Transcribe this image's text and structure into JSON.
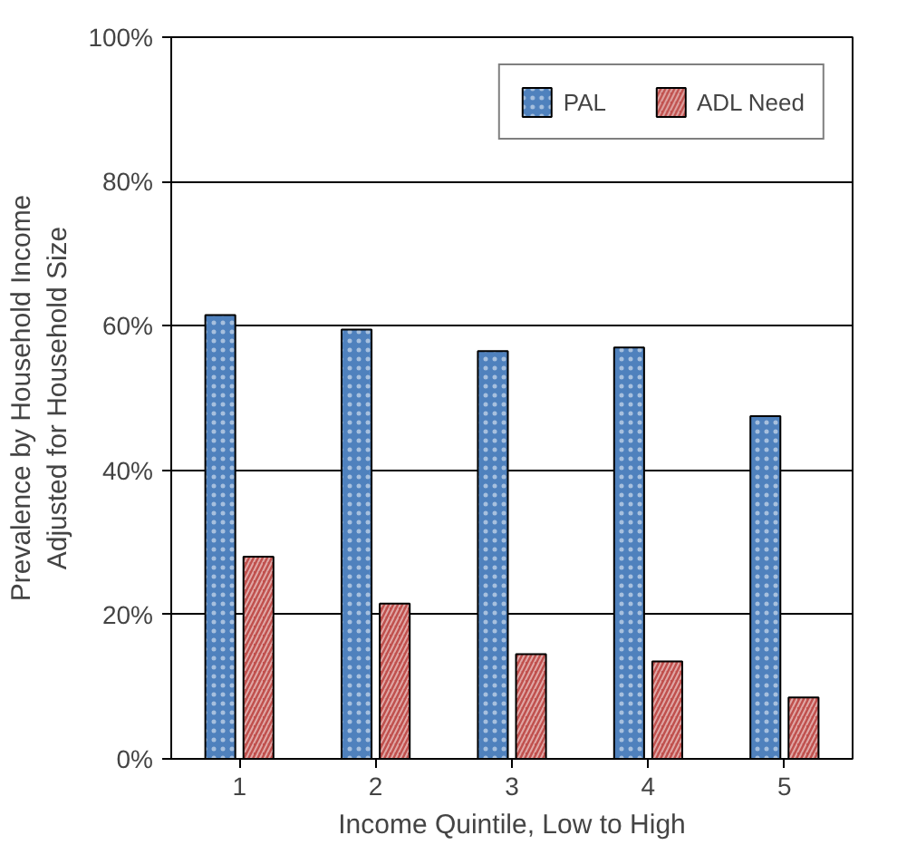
{
  "chart_data": {
    "type": "bar",
    "xlabel": "Income Quintile, Low to High",
    "ylabel": "Prevalence by Household Income\nAdjusted for Household Size",
    "categories": [
      "1",
      "2",
      "3",
      "4",
      "5"
    ],
    "series": [
      {
        "name": "PAL",
        "color": "#4f81bd",
        "values": [
          61.5,
          59.5,
          56.5,
          57,
          47.5
        ]
      },
      {
        "name": "ADL Need",
        "color": "#c0504d",
        "values": [
          28,
          21.5,
          14.5,
          13.5,
          8.5
        ]
      }
    ],
    "ylim": [
      0,
      100
    ],
    "yticks": [
      {
        "value": 0,
        "label": "0%"
      },
      {
        "value": 20,
        "label": "20%"
      },
      {
        "value": 40,
        "label": "40%"
      },
      {
        "value": 60,
        "label": "60%"
      },
      {
        "value": 80,
        "label": "80%"
      },
      {
        "value": 100,
        "label": "100%"
      }
    ],
    "grid": "y",
    "legend": "top right"
  }
}
